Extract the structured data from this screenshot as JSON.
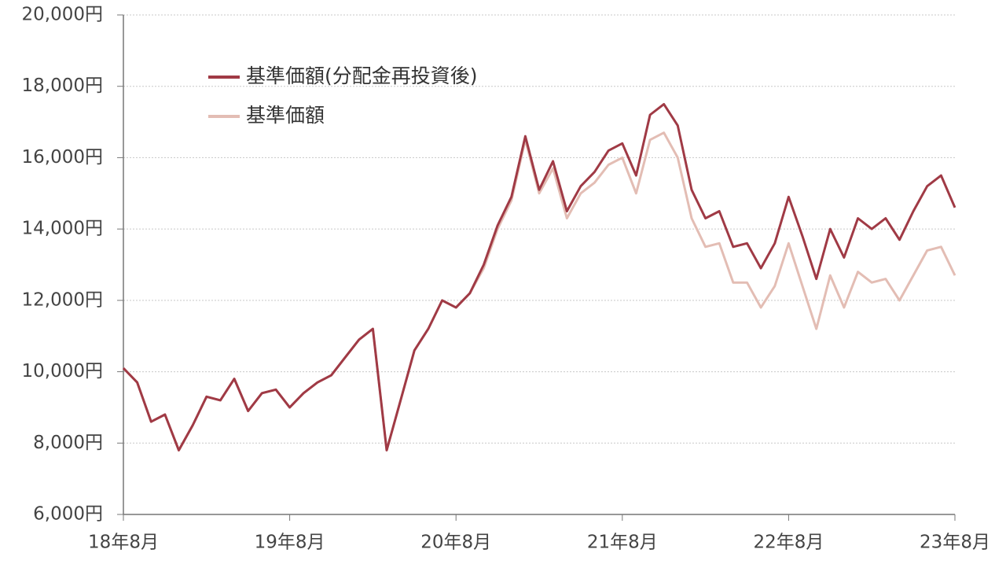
{
  "chart_data": {
    "type": "line",
    "categories": [
      "18年8月",
      null,
      null,
      null,
      null,
      null,
      null,
      null,
      null,
      null,
      null,
      null,
      "19年8月",
      null,
      null,
      null,
      null,
      null,
      null,
      null,
      null,
      null,
      null,
      null,
      "20年8月",
      null,
      null,
      null,
      null,
      null,
      null,
      null,
      null,
      null,
      null,
      null,
      "21年8月",
      null,
      null,
      null,
      null,
      null,
      null,
      null,
      null,
      null,
      null,
      null,
      "22年8月",
      null,
      null,
      null,
      null,
      null,
      null,
      null,
      null,
      null,
      null,
      null,
      "23年8月"
    ],
    "series": [
      {
        "name": "基準価額",
        "color": "#e3bdb4",
        "values": [
          10100,
          9700,
          8600,
          8800,
          7800,
          8500,
          9300,
          9200,
          9800,
          8900,
          9400,
          9500,
          9000,
          9400,
          9700,
          9900,
          10400,
          10900,
          11200,
          7800,
          9200,
          10600,
          11200,
          12000,
          11800,
          12200,
          12900,
          14000,
          14800,
          16500,
          15000,
          15700,
          14300,
          15000,
          15300,
          15800,
          16000,
          15000,
          16500,
          16700,
          16000,
          14300,
          13500,
          13600,
          12500,
          12500,
          11800,
          12400,
          13600,
          12400,
          11200,
          12700,
          11800,
          12800,
          12500,
          12600,
          12000,
          12700,
          13400,
          13500,
          12700
        ]
      },
      {
        "name": "基準価額(分配金再投資後)",
        "color": "#a03a45",
        "values": [
          10100,
          9700,
          8600,
          8800,
          7800,
          8500,
          9300,
          9200,
          9800,
          8900,
          9400,
          9500,
          9000,
          9400,
          9700,
          9900,
          10400,
          10900,
          11200,
          7800,
          9200,
          10600,
          11200,
          12000,
          11800,
          12200,
          13000,
          14100,
          14900,
          16600,
          15100,
          15900,
          14500,
          15200,
          15600,
          16200,
          16400,
          15500,
          17200,
          17500,
          16900,
          15100,
          14300,
          14500,
          13500,
          13600,
          12900,
          13600,
          14900,
          13800,
          12600,
          14000,
          13200,
          14300,
          14000,
          14300,
          13700,
          14500,
          15200,
          15500,
          14600
        ]
      }
    ],
    "ylim": [
      6000,
      20000
    ],
    "yticks": [
      {
        "value": 6000,
        "label": "6,000円"
      },
      {
        "value": 8000,
        "label": "8,000円"
      },
      {
        "value": 10000,
        "label": "10,000円"
      },
      {
        "value": 12000,
        "label": "12,000円"
      },
      {
        "value": 14000,
        "label": "14,000円"
      },
      {
        "value": 16000,
        "label": "16,000円"
      },
      {
        "value": 18000,
        "label": "18,000円"
      },
      {
        "value": 20000,
        "label": "20,000円"
      }
    ],
    "grid": true,
    "legend": "top-left"
  }
}
